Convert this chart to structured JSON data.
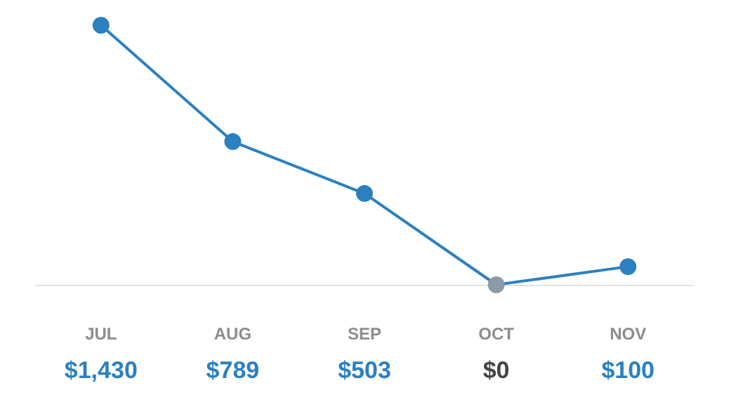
{
  "chart_data": {
    "type": "line",
    "categories": [
      "JUL",
      "AUG",
      "SEP",
      "OCT",
      "NOV"
    ],
    "values": [
      1430,
      789,
      503,
      0,
      100
    ],
    "value_labels": [
      "$1,430",
      "$789",
      "$503",
      "$0",
      "$100"
    ],
    "color": "#2b80c0",
    "colors": [
      "#2b80c0",
      "#2b80c0",
      "#2b80c0",
      "#8a9ba8",
      "#2b80c0"
    ],
    "marker": "circle",
    "grid": false
  }
}
